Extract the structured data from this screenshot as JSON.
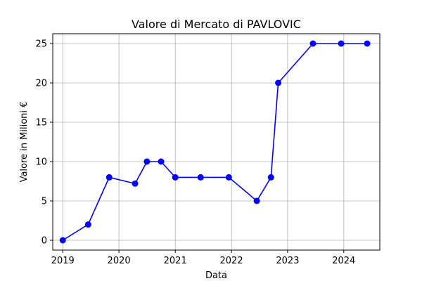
{
  "chart_data": {
    "type": "line",
    "title": "Valore di Mercato di PAVLOVIC",
    "xlabel": "Data",
    "ylabel": "Valore in Milioni €",
    "x_ticks": [
      "2019",
      "2020",
      "2021",
      "2022",
      "2023",
      "2024"
    ],
    "y_ticks": [
      "0",
      "5",
      "10",
      "15",
      "20",
      "25"
    ],
    "xlim": [
      "2018-10-28",
      "2024-08-22"
    ],
    "ylim": [
      -1.25,
      26.25
    ],
    "grid": true,
    "series": [
      {
        "color": "#0000ff",
        "marker": "circle",
        "points": [
          {
            "x": "2019-01-01",
            "y": 0
          },
          {
            "x": "2019-06-15",
            "y": 2
          },
          {
            "x": "2019-10-30",
            "y": 8
          },
          {
            "x": "2020-04-15",
            "y": 7.2
          },
          {
            "x": "2020-07-01",
            "y": 10
          },
          {
            "x": "2020-10-01",
            "y": 10
          },
          {
            "x": "2021-01-01",
            "y": 8
          },
          {
            "x": "2021-06-15",
            "y": 8
          },
          {
            "x": "2021-12-15",
            "y": 8
          },
          {
            "x": "2022-06-15",
            "y": 5
          },
          {
            "x": "2022-09-15",
            "y": 8
          },
          {
            "x": "2022-11-01",
            "y": 20
          },
          {
            "x": "2023-06-15",
            "y": 25
          },
          {
            "x": "2023-12-15",
            "y": 25
          },
          {
            "x": "2024-06-01",
            "y": 25
          }
        ]
      }
    ]
  }
}
